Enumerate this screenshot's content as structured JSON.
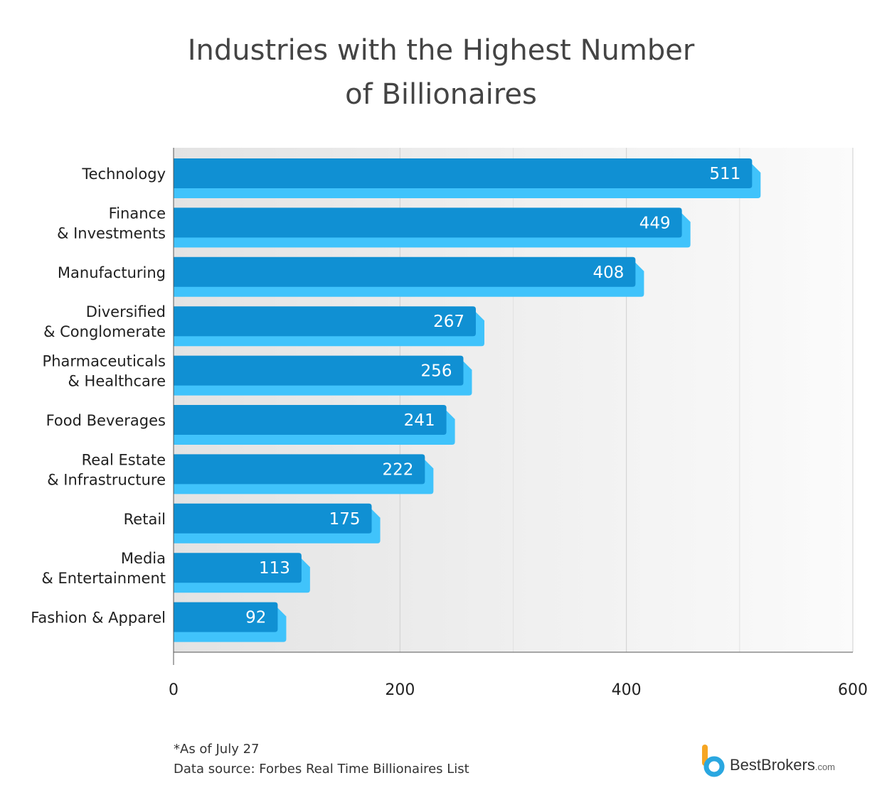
{
  "title_lines": [
    "Industries with the Highest Number",
    "of Billionaires"
  ],
  "chart_data": {
    "type": "bar",
    "orientation": "horizontal",
    "title": "Industries with the Highest Number of Billionaires",
    "categories": [
      [
        "Technology"
      ],
      [
        "Finance",
        "& Investments"
      ],
      [
        "Manufacturing"
      ],
      [
        "Diversified",
        "& Conglomerate"
      ],
      [
        "Pharmaceuticals",
        "& Healthcare"
      ],
      [
        "Food Beverages"
      ],
      [
        "Real Estate",
        "& Infrastructure"
      ],
      [
        "Retail"
      ],
      [
        "Media",
        "& Entertainment"
      ],
      [
        "Fashion & Apparel"
      ]
    ],
    "values": [
      511,
      449,
      408,
      267,
      256,
      241,
      222,
      175,
      113,
      92
    ],
    "xlim": [
      0,
      600
    ],
    "xticks": [
      0,
      200,
      400,
      600
    ],
    "grid": true,
    "xlabel": "",
    "ylabel": "",
    "colors": {
      "bar": "#1090d3",
      "bar_shadow": "#40c3fb",
      "value_text": "#ffffff",
      "axis": "#555555",
      "grid": "#cfcfcf"
    }
  },
  "footnotes": [
    "*As of July 27",
    "Data source: Forbes Real Time Billionaires List"
  ],
  "logo": {
    "name": "BestBrokers",
    "suffix": ".com",
    "icon": "bestbrokers-b-logo-icon"
  }
}
